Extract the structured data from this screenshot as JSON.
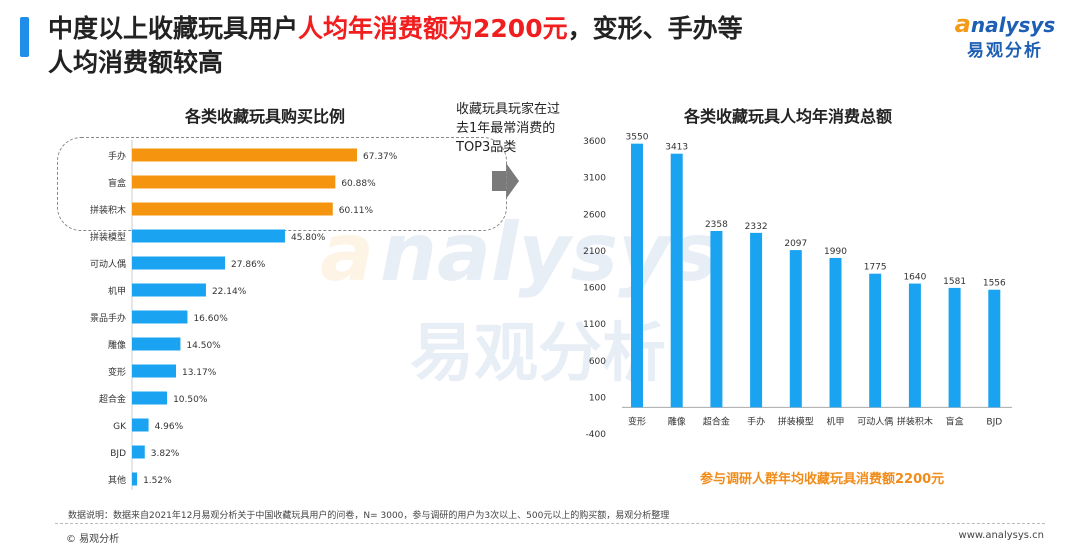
{
  "headline": {
    "part1": "中度以上收藏玩具用户",
    "highlight": "人均年消费额为2200元",
    "part2": "，变形、手办等",
    "line2": "人均消费额较高"
  },
  "logo": {
    "en": "nalysys",
    "cn": "易观分析"
  },
  "note": {
    "text": "收藏玩具玩家在过去1年最常消费的TOP3品类"
  },
  "caption": "参与调研人群年均收藏玩具消费额2200元",
  "source": "数据说明：数据来自2021年12月易观分析关于中国收藏玩具用户的问卷，N= 3000，参与调研的用户为3次以上、500元以上的购买额，易观分析整理",
  "footer": {
    "left": "© 易观分析",
    "right": "www.analysys.cn"
  },
  "colors": {
    "orange": "#f5950f",
    "blue": "#1aa3f0",
    "highlight": "#f01e1e",
    "brand": "#1e5fb3"
  },
  "chart_data": [
    {
      "type": "bar",
      "orientation": "horizontal",
      "title": "各类收藏玩具购买比例",
      "categories": [
        "手办",
        "盲盒",
        "拼装积木",
        "拼装模型",
        "可动人偶",
        "机甲",
        "景品手办",
        "雕像",
        "变形",
        "超合金",
        "GK",
        "BJD",
        "其他"
      ],
      "values": [
        67.37,
        60.88,
        60.11,
        45.8,
        27.86,
        22.14,
        16.6,
        14.5,
        13.17,
        10.5,
        4.96,
        3.82,
        1.52
      ],
      "labels": [
        "67.37%",
        "60.88%",
        "60.11%",
        "45.80%",
        "27.86%",
        "22.14%",
        "16.60%",
        "14.50%",
        "13.17%",
        "10.50%",
        "4.96%",
        "3.82%",
        "1.52%"
      ],
      "highlight_top": 3
    },
    {
      "type": "bar",
      "orientation": "vertical",
      "title": "各类收藏玩具人均年消费总额",
      "categories": [
        "变形",
        "雕像",
        "超合金",
        "手办",
        "拼装模型",
        "机甲",
        "可动人偶",
        "拼装积木",
        "盲盒",
        "BJD"
      ],
      "values": [
        3550,
        3413,
        2358,
        2332,
        2097,
        1990,
        1775,
        1640,
        1581,
        1556
      ],
      "yticks": [
        3600,
        3100,
        2600,
        2100,
        1600,
        1100,
        600,
        100,
        -400
      ],
      "ylim": [
        -400,
        3600
      ]
    }
  ]
}
